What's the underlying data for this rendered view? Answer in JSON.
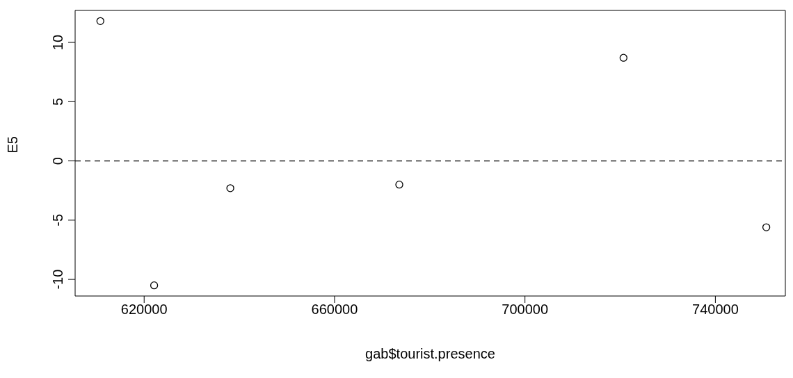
{
  "chart_data": {
    "type": "scatter",
    "xlabel": "gab$tourist.presence",
    "ylabel": "E5",
    "x": [
      610800,
      622100,
      638100,
      673600,
      720700,
      750700
    ],
    "values": [
      11.8,
      -10.5,
      -2.3,
      -2.0,
      8.7,
      -5.6
    ],
    "color": "#000000",
    "marker": "circle",
    "xlim": [
      605500,
      754700
    ],
    "xticks": [
      620000,
      660000,
      700000,
      740000
    ],
    "ylim": [
      -11.4,
      12.7
    ],
    "yticks": [
      -10,
      -5,
      0,
      5,
      10
    ],
    "ref_lines": [
      {
        "axis": "y",
        "value": 0,
        "color": "#000000",
        "line_style": "dashed"
      }
    ],
    "grid": false,
    "legend": false
  }
}
